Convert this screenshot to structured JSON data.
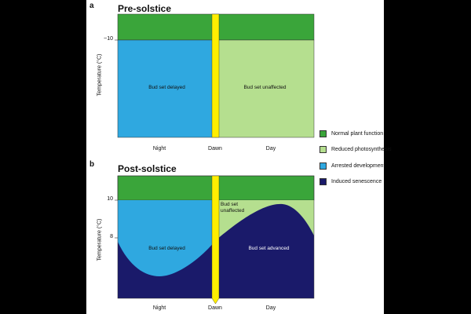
{
  "panel_a": {
    "letter": "a",
    "title": "Pre-solstice",
    "y_axis_label": "Temperature (°C)",
    "y_tick": "~10",
    "x_ticks": [
      "Night",
      "Dawn",
      "Day"
    ],
    "region_labels": {
      "left": "Bud set delayed",
      "right": "Bud set unaffected"
    }
  },
  "panel_b": {
    "letter": "b",
    "title": "Post-solstice",
    "y_axis_label": "Temperature (°C)",
    "y_ticks": [
      "10",
      "8"
    ],
    "x_ticks": [
      "Night",
      "Dawn",
      "Day"
    ],
    "region_labels": {
      "left": "Bud set delayed",
      "upper_right": "Bud set unaffected",
      "right": "Bud set advanced"
    }
  },
  "legend": {
    "items": [
      {
        "label": "Normal plant function",
        "color": "#3aa53a"
      },
      {
        "label": "Reduced photosynthesis",
        "color": "#b5df8f"
      },
      {
        "label": "Arrested development",
        "color": "#2fa8e0"
      },
      {
        "label": "Induced senescence",
        "color": "#1a1a6a"
      }
    ]
  },
  "colors": {
    "dawn_bar": "#ffee00",
    "normal": "#3aa53a",
    "reduced": "#b5df8f",
    "arrested": "#2fa8e0",
    "senescence": "#1a1a6a"
  }
}
